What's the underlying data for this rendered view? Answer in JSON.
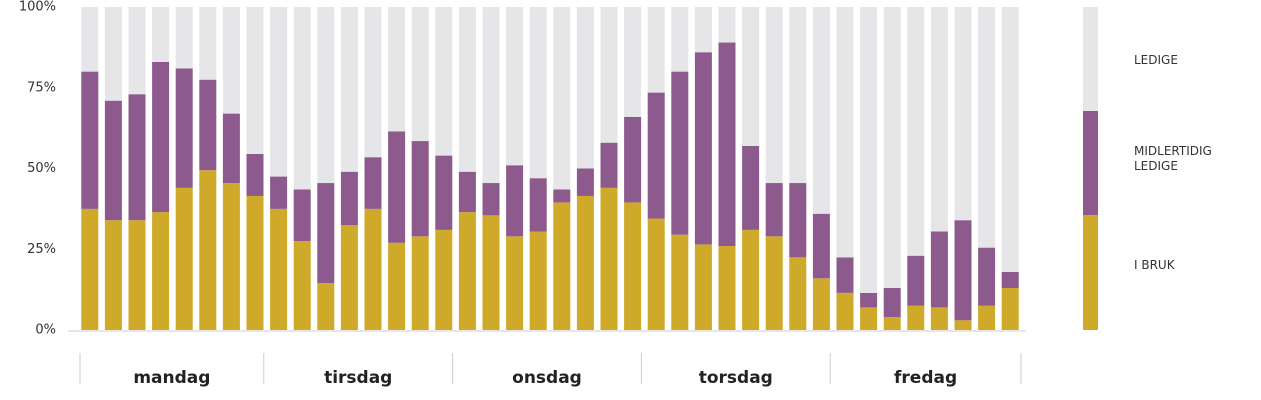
{
  "chart_data": {
    "type": "stacked-bar",
    "groups": [
      "mandag",
      "tirsdag",
      "onsdag",
      "torsdag",
      "fredag"
    ],
    "series": [
      {
        "name": "I BRUK",
        "color": "#cfa92a",
        "values": [
          37.5,
          34,
          34,
          36.5,
          44,
          49.5,
          45.5,
          41.5,
          37.5,
          27.5,
          14.5,
          32.5,
          37.5,
          27,
          29,
          31,
          36.5,
          35.5,
          29,
          30.5,
          39.5,
          41.5,
          44,
          39.5,
          34.5,
          29.5,
          26.5,
          26,
          31,
          29,
          22.5,
          16,
          11.5,
          7,
          4,
          7.5,
          7,
          3,
          7.5,
          13
        ]
      },
      {
        "name": "MIDLERTIDIG LEDIGE",
        "color": "#8c5a8c",
        "values": [
          42.5,
          37,
          39,
          46.5,
          37,
          28,
          21.5,
          13,
          10,
          16,
          31,
          16.5,
          16,
          34.5,
          29.5,
          23,
          12.5,
          10,
          22,
          16.5,
          4,
          8.5,
          14,
          26.5,
          39,
          50.5,
          59.5,
          63,
          26,
          16.5,
          23,
          20,
          11,
          4.5,
          9,
          15.5,
          23.5,
          31,
          18,
          5
        ]
      },
      {
        "name": "LEDIGE",
        "color": "#e6e6e8",
        "values": [
          20,
          29,
          27,
          17,
          19,
          22.5,
          33,
          45.5,
          52.5,
          56.5,
          54.5,
          51,
          46.5,
          38.5,
          41.5,
          46,
          51,
          54.5,
          49,
          53,
          56.5,
          50,
          42,
          34,
          26.5,
          20,
          14,
          11,
          43,
          54.5,
          54.5,
          64,
          77.5,
          88.5,
          87,
          77,
          69.5,
          66,
          74.5,
          82
        ]
      }
    ],
    "ylim": [
      0,
      100
    ],
    "yticks": [
      {
        "value": 0,
        "label": "0%"
      },
      {
        "value": 25,
        "label": "25%"
      },
      {
        "value": 50,
        "label": "50%"
      },
      {
        "value": 75,
        "label": "75%"
      },
      {
        "value": 100,
        "label": "100%"
      }
    ]
  }
}
